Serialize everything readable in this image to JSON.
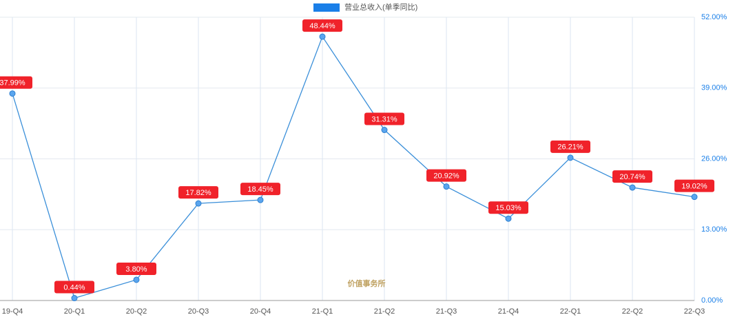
{
  "chart_data": {
    "type": "line",
    "categories": [
      "19-Q4",
      "20-Q1",
      "20-Q2",
      "20-Q3",
      "20-Q4",
      "21-Q1",
      "21-Q2",
      "21-Q3",
      "21-Q4",
      "22-Q1",
      "22-Q2",
      "22-Q3"
    ],
    "series": [
      {
        "name": "营业总收入(单季同比)",
        "color": "#3a8fd9",
        "values": [
          37.99,
          0.44,
          3.8,
          17.82,
          18.45,
          48.44,
          31.31,
          20.92,
          15.03,
          26.21,
          20.74,
          19.02
        ],
        "value_labels": [
          "37.99%",
          "0.44%",
          "3.80%",
          "17.82%",
          "18.45%",
          "48.44%",
          "31.31%",
          "20.92%",
          "15.03%",
          "26.21%",
          "20.74%",
          "19.02%"
        ]
      }
    ],
    "ylim": [
      0,
      52
    ],
    "yticks": [
      {
        "value": 0,
        "label": "0.00%"
      },
      {
        "value": 13,
        "label": "13.00%"
      },
      {
        "value": 26,
        "label": "26.00%"
      },
      {
        "value": 39,
        "label": "39.00%"
      },
      {
        "value": 52,
        "label": "52.00%"
      }
    ],
    "y_axis_side": "right",
    "grid": true,
    "label_color": "#f0222a",
    "watermark": "价值事务所"
  }
}
